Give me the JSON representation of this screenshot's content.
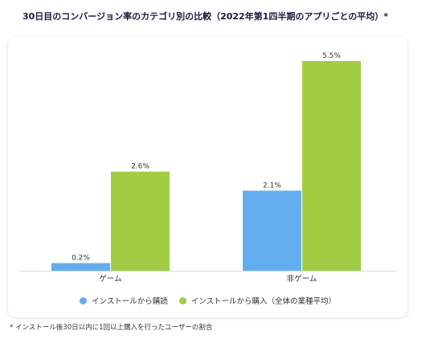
{
  "title": "30日目のコンバージョン率のカテゴリ別の比較（2022年第1四半期のアプリごとの平均）*",
  "footnote": "* インストール後30日以内に1回以上購入を行ったユーザーの割合",
  "colors": {
    "series_0": "#64aef0",
    "series_1": "#a3cc45"
  },
  "chart_data": {
    "type": "bar",
    "categories": [
      "ゲーム",
      "非ゲーム"
    ],
    "series": [
      {
        "name": "インストールから購読",
        "values": [
          0.2,
          2.1
        ],
        "labels": [
          "0.2%",
          "2.1%"
        ]
      },
      {
        "name": "インストールから購入（全体の業種平均）",
        "values": [
          2.6,
          5.5
        ],
        "labels": [
          "2.6%",
          "5.5%"
        ]
      }
    ],
    "ylim": [
      0,
      5.5
    ],
    "grid": false,
    "legend": "bottom"
  }
}
